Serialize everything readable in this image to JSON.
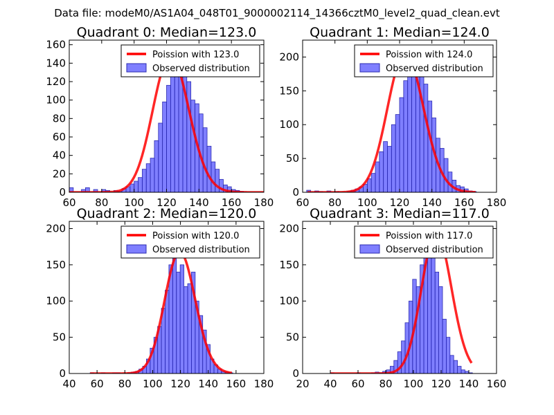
{
  "suptitle": "Data file: modeM0/AS1A04_048T01_9000002114_14366cztM0_level2_quad_clean.evt",
  "chart_data": [
    {
      "type": "histogram",
      "title": "Quadrant 0: Median=123.0",
      "xlim": [
        60,
        180
      ],
      "ylim": [
        0,
        165
      ],
      "xticks": [
        60,
        80,
        100,
        120,
        140,
        160,
        180
      ],
      "yticks": [
        0,
        20,
        40,
        60,
        80,
        100,
        120,
        140,
        160
      ],
      "median": 123.0,
      "bin_start": 60,
      "bin_width": 2.5,
      "counts": [
        5,
        0,
        0,
        3,
        5,
        0,
        3,
        0,
        3,
        2,
        0,
        2,
        1,
        4,
        6,
        9,
        12,
        16,
        25,
        31,
        37,
        56,
        75,
        98,
        116,
        130,
        140,
        141,
        138,
        120,
        100,
        96,
        85,
        70,
        50,
        33,
        25,
        14,
        8,
        6,
        3,
        2,
        1,
        0,
        0,
        0,
        0,
        0
      ],
      "legend": [
        "Poission with 123.0",
        "Observed distribution"
      ],
      "legend_loc": "upper right"
    },
    {
      "type": "histogram",
      "title": "Quadrant 1: Median=124.0",
      "xlim": [
        60,
        180
      ],
      "ylim": [
        0,
        225
      ],
      "xticks": [
        60,
        80,
        100,
        120,
        140,
        160,
        180
      ],
      "yticks": [
        0,
        50,
        100,
        150,
        200
      ],
      "median": 124.0,
      "bin_start": 62.5,
      "bin_width": 2.5,
      "counts": [
        3,
        0,
        2,
        1,
        0,
        2,
        0,
        1,
        0,
        0,
        1,
        3,
        5,
        8,
        12,
        20,
        28,
        45,
        60,
        75,
        68,
        100,
        115,
        140,
        165,
        180,
        190,
        196,
        185,
        160,
        135,
        110,
        80,
        65,
        50,
        30,
        18,
        10,
        8,
        5,
        2,
        1
      ],
      "legend": [
        "Poission with 124.0",
        "Observed distribution"
      ],
      "legend_loc": "upper right"
    },
    {
      "type": "histogram",
      "title": "Quadrant 2: Median=120.0",
      "xlim": [
        40,
        180
      ],
      "ylim": [
        0,
        210
      ],
      "xticks": [
        40,
        60,
        80,
        100,
        120,
        140,
        160,
        180
      ],
      "yticks": [
        0,
        50,
        100,
        150,
        200
      ],
      "median": 120.0,
      "bin_start": 55,
      "bin_width": 2.7,
      "counts": [
        1,
        0,
        0,
        1,
        0,
        0,
        1,
        1,
        0,
        0,
        1,
        2,
        3,
        6,
        10,
        20,
        35,
        50,
        65,
        90,
        115,
        150,
        160,
        140,
        150,
        120,
        124,
        140,
        100,
        80,
        60,
        40,
        20,
        12,
        6,
        3,
        2,
        1
      ],
      "legend": [
        "Poission with 120.0",
        "Observed distribution"
      ],
      "legend_loc": "upper right"
    },
    {
      "type": "histogram",
      "title": "Quadrant 3: Median=117.0",
      "xlim": [
        20,
        160
      ],
      "ylim": [
        0,
        210
      ],
      "xticks": [
        20,
        40,
        60,
        80,
        100,
        120,
        140,
        160
      ],
      "yticks": [
        0,
        50,
        100,
        150,
        200
      ],
      "median": 117.0,
      "bin_start": 40,
      "bin_width": 2.7,
      "counts": [
        1,
        0,
        0,
        0,
        0,
        0,
        0,
        1,
        0,
        0,
        0,
        1,
        2,
        1,
        3,
        5,
        10,
        18,
        30,
        45,
        70,
        100,
        130,
        120,
        150,
        170,
        185,
        165,
        140,
        120,
        75,
        50,
        25,
        18,
        10,
        5,
        3,
        1
      ],
      "legend": [
        "Poission with 117.0",
        "Observed distribution"
      ],
      "legend_loc": "upper right"
    }
  ]
}
